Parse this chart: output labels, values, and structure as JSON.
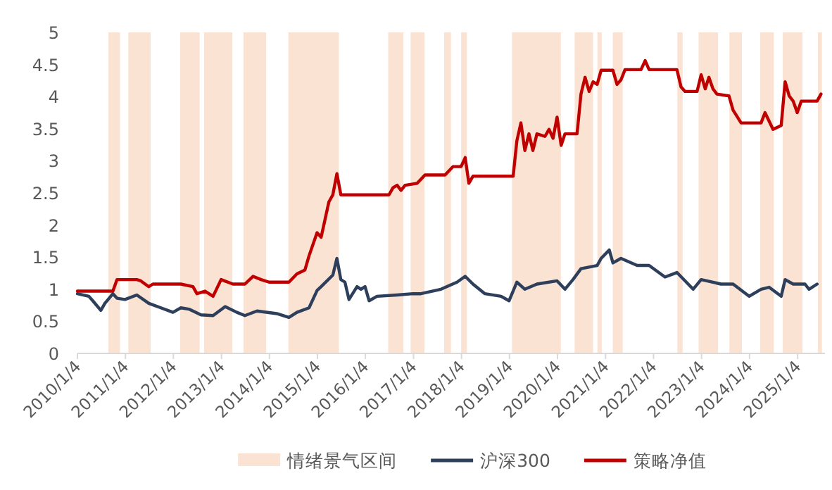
{
  "chart_data": {
    "type": "line",
    "xlim": [
      "2010-01-04",
      "2025-07-31"
    ],
    "xticks": [
      {
        "value": "2010-01-04",
        "label": "2010/1/4"
      },
      {
        "value": "2011-01-04",
        "label": "2011/1/4"
      },
      {
        "value": "2012-01-04",
        "label": "2012/1/4"
      },
      {
        "value": "2013-01-04",
        "label": "2013/1/4"
      },
      {
        "value": "2014-01-04",
        "label": "2014/1/4"
      },
      {
        "value": "2015-01-04",
        "label": "2015/1/4"
      },
      {
        "value": "2016-01-04",
        "label": "2016/1/4"
      },
      {
        "value": "2017-01-04",
        "label": "2017/1/4"
      },
      {
        "value": "2018-01-04",
        "label": "2018/1/4"
      },
      {
        "value": "2019-01-04",
        "label": "2019/1/4"
      },
      {
        "value": "2020-01-04",
        "label": "2020/1/4"
      },
      {
        "value": "2021-01-04",
        "label": "2021/1/4"
      },
      {
        "value": "2022-01-04",
        "label": "2022/1/4"
      },
      {
        "value": "2023-01-04",
        "label": "2023/1/4"
      },
      {
        "value": "2024-01-04",
        "label": "2024/1/4"
      },
      {
        "value": "2025-01-04",
        "label": "2025/1/4"
      }
    ],
    "ylim": [
      0,
      5
    ],
    "yticks": [
      0,
      0.5,
      1,
      1.5,
      2,
      2.5,
      3,
      3.5,
      4,
      4.5,
      5
    ],
    "legend": "bottom",
    "bands": [
      {
        "axis": "x",
        "from": "2010-08-28",
        "to": "2010-11-24",
        "label": "情绪景气区间",
        "color": "#fbe3d4"
      },
      {
        "axis": "x",
        "from": "2011-01-26",
        "to": "2011-07-15",
        "color": "#fbe3d4"
      },
      {
        "axis": "x",
        "from": "2012-02-24",
        "to": "2012-07-22",
        "color": "#fbe3d4"
      },
      {
        "axis": "x",
        "from": "2012-08-25",
        "to": "2013-03-28",
        "color": "#fbe3d4"
      },
      {
        "axis": "x",
        "from": "2013-06-20",
        "to": "2013-12-10",
        "color": "#fbe3d4"
      },
      {
        "axis": "x",
        "from": "2014-05-28",
        "to": "2015-06-16",
        "color": "#fbe3d4"
      },
      {
        "axis": "x",
        "from": "2016-06-25",
        "to": "2016-10-19",
        "color": "#fbe3d4"
      },
      {
        "axis": "x",
        "from": "2016-12-13",
        "to": "2017-03-28",
        "color": "#fbe3d4"
      },
      {
        "axis": "x",
        "from": "2017-08-25",
        "to": "2017-10-16",
        "color": "#fbe3d4"
      },
      {
        "axis": "x",
        "from": "2018-01-01",
        "to": "2018-02-14",
        "color": "#fbe3d4"
      },
      {
        "axis": "x",
        "from": "2019-01-23",
        "to": "2020-01-30",
        "color": "#fbe3d4"
      },
      {
        "axis": "x",
        "from": "2020-05-14",
        "to": "2020-10-01",
        "color": "#fbe3d4"
      },
      {
        "axis": "x",
        "from": "2020-11-03",
        "to": "2020-12-06",
        "color": "#fbe3d4"
      },
      {
        "axis": "x",
        "from": "2021-02-28",
        "to": "2021-05-14",
        "color": "#fbe3d4"
      },
      {
        "axis": "x",
        "from": "2022-07-04",
        "to": "2022-08-13",
        "color": "#fbe3d4"
      },
      {
        "axis": "x",
        "from": "2022-12-13",
        "to": "2023-05-10",
        "color": "#fbe3d4"
      },
      {
        "axis": "x",
        "from": "2023-08-04",
        "to": "2023-11-07",
        "color": "#fbe3d4"
      },
      {
        "axis": "x",
        "from": "2024-03-25",
        "to": "2024-07-07",
        "color": "#fbe3d4"
      },
      {
        "axis": "x",
        "from": "2024-09-13",
        "to": "2025-02-10",
        "color": "#fbe3d4"
      },
      {
        "axis": "x",
        "from": "2025-06-07",
        "to": "2025-07-08",
        "color": "#fbe3d4"
      }
    ],
    "series": [
      {
        "name": "沪深300",
        "color": "#2e3f5c",
        "x": [
          "2010-01-04",
          "2010-04",
          "2010-05",
          "2010-07",
          "2010-08",
          "2010-10",
          "2010-11",
          "2011-01",
          "2011-04",
          "2011-07",
          "2011-10",
          "2012-01",
          "2012-03",
          "2012-05",
          "2012-08",
          "2012-11",
          "2013-02",
          "2013-05",
          "2013-07",
          "2013-10",
          "2014-03",
          "2014-06",
          "2014-08",
          "2014-11",
          "2015-01",
          "2015-02",
          "2015-05",
          "2015-06",
          "2015-07",
          "2015-08",
          "2015-09",
          "2015-11",
          "2015-12",
          "2016-01",
          "2016-02",
          "2016-04",
          "2016-09",
          "2017-01",
          "2017-03",
          "2017-08",
          "2017-12",
          "2018-02",
          "2018-04",
          "2018-07",
          "2018-11",
          "2019-01",
          "2019-03",
          "2019-05",
          "2019-08",
          "2020-01",
          "2020-03",
          "2020-05",
          "2020-07",
          "2020-11",
          "2020-12",
          "2021-02",
          "2021-03",
          "2021-05",
          "2021-09",
          "2021-12",
          "2022-04",
          "2022-07",
          "2022-11",
          "2023-01",
          "2023-06",
          "2023-09",
          "2024-01",
          "2024-04",
          "2024-06",
          "2024-09",
          "2024-10",
          "2024-12",
          "2025-03",
          "2025-04",
          "2025-06"
        ],
        "values": [
          0.93,
          0.89,
          0.82,
          0.67,
          0.78,
          0.93,
          0.86,
          0.84,
          0.91,
          0.78,
          0.71,
          0.64,
          0.71,
          0.69,
          0.6,
          0.59,
          0.73,
          0.64,
          0.59,
          0.66,
          0.62,
          0.56,
          0.64,
          0.71,
          0.98,
          1.04,
          1.22,
          1.48,
          1.15,
          1.11,
          0.84,
          1.04,
          1.0,
          1.04,
          0.82,
          0.89,
          0.91,
          0.93,
          0.93,
          1.0,
          1.11,
          1.2,
          1.08,
          0.93,
          0.89,
          0.82,
          1.11,
          1.0,
          1.08,
          1.13,
          1.0,
          1.15,
          1.32,
          1.37,
          1.48,
          1.61,
          1.41,
          1.48,
          1.37,
          1.37,
          1.19,
          1.26,
          1.0,
          1.15,
          1.08,
          1.08,
          0.89,
          1.0,
          1.03,
          0.89,
          1.15,
          1.08,
          1.08,
          1.0,
          1.08
        ]
      },
      {
        "name": "策略净值",
        "color": "#c00000",
        "x": [
          "2010-01-04",
          "2010-10",
          "2010-11",
          "2011-04",
          "2011-05",
          "2011-07",
          "2011-08",
          "2012-03",
          "2012-06",
          "2012-07",
          "2012-09",
          "2012-11",
          "2013-01",
          "2013-04",
          "2013-07",
          "2013-09",
          "2013-11",
          "2014-01",
          "2014-06",
          "2014-08",
          "2014-10",
          "2014-11",
          "2015-01",
          "2015-02",
          "2015-03",
          "2015-04",
          "2015-05",
          "2015-06",
          "2015-07",
          "2016-07",
          "2016-08",
          "2016-09",
          "2016-10",
          "2016-11",
          "2017-02",
          "2017-04",
          "2017-09",
          "2017-11",
          "2018-01",
          "2018-02",
          "2018-03",
          "2018-04",
          "2019-02",
          "2019-03",
          "2019-04",
          "2019-05",
          "2019-06",
          "2019-07",
          "2019-08",
          "2019-10",
          "2019-11",
          "2019-12",
          "2020-01",
          "2020-02",
          "2020-03",
          "2020-06",
          "2020-07",
          "2020-08",
          "2020-09",
          "2020-10",
          "2020-11",
          "2020-12",
          "2021-03",
          "2021-04",
          "2021-05",
          "2021-06",
          "2021-10",
          "2021-11",
          "2021-12",
          "2022-07",
          "2022-08",
          "2022-09",
          "2022-12",
          "2023-01",
          "2023-02",
          "2023-03",
          "2023-04",
          "2023-05",
          "2023-08",
          "2023-09",
          "2023-11",
          "2024-04",
          "2024-05",
          "2024-07",
          "2024-09",
          "2024-10",
          "2024-11",
          "2024-12",
          "2025-01",
          "2025-02",
          "2025-06",
          "2025-07"
        ],
        "values": [
          0.97,
          0.97,
          1.15,
          1.15,
          1.13,
          1.04,
          1.08,
          1.08,
          1.04,
          0.93,
          0.97,
          0.89,
          1.15,
          1.08,
          1.08,
          1.2,
          1.15,
          1.11,
          1.11,
          1.24,
          1.3,
          1.52,
          1.88,
          1.81,
          2.07,
          2.36,
          2.47,
          2.8,
          2.47,
          2.47,
          2.58,
          2.62,
          2.54,
          2.62,
          2.65,
          2.78,
          2.78,
          2.91,
          2.91,
          3.05,
          2.65,
          2.76,
          2.76,
          3.31,
          3.59,
          3.16,
          3.42,
          3.16,
          3.42,
          3.38,
          3.49,
          3.35,
          3.68,
          3.24,
          3.42,
          3.42,
          4.04,
          4.3,
          4.08,
          4.23,
          4.19,
          4.41,
          4.41,
          4.19,
          4.26,
          4.42,
          4.42,
          4.56,
          4.42,
          4.42,
          4.15,
          4.08,
          4.08,
          4.34,
          4.12,
          4.3,
          4.12,
          4.04,
          4.01,
          3.79,
          3.59,
          3.59,
          3.75,
          3.49,
          3.55,
          4.23,
          4.01,
          3.93,
          3.75,
          3.93,
          3.93,
          4.04
        ]
      }
    ]
  }
}
